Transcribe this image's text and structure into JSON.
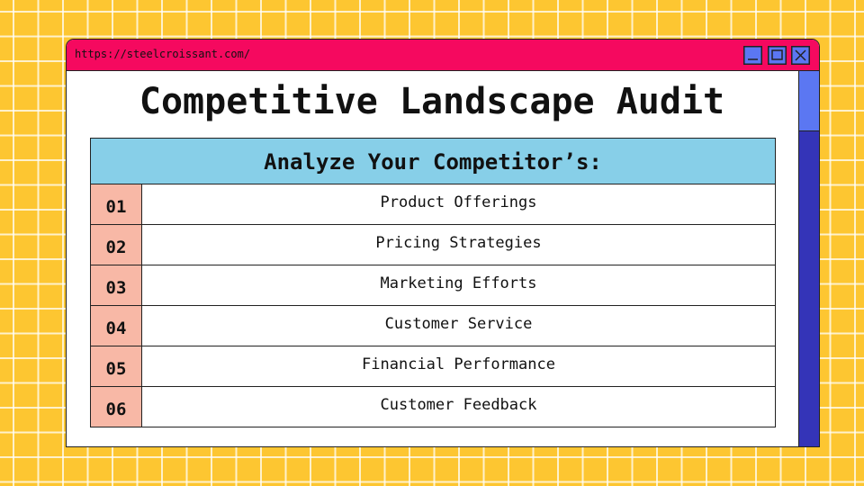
{
  "window": {
    "url": "https://steelcroissant.com/"
  },
  "title": "Competitive Landscape Audit",
  "table": {
    "header": "Analyze Your Competitor’s:",
    "rows": [
      [
        "01",
        "Product Offerings"
      ],
      [
        "02",
        "Pricing Strategies"
      ],
      [
        "03",
        "Marketing Efforts"
      ],
      [
        "04",
        "Customer Service"
      ],
      [
        "05",
        "Financial Performance"
      ],
      [
        "06",
        "Customer Feedback"
      ]
    ]
  }
}
